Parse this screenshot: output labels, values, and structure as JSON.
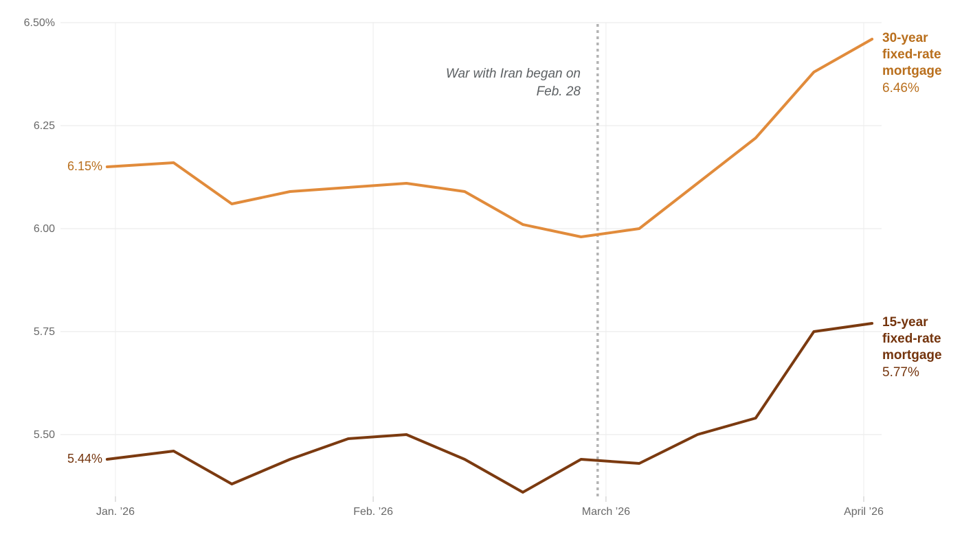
{
  "chart_data": {
    "type": "line",
    "title": "",
    "x_unit": "days since Jan. 1 '26 (weekly mortgage-rate readings)",
    "x_days": [
      -1,
      7,
      14,
      21,
      28,
      35,
      42,
      49,
      56,
      63,
      70,
      77,
      84,
      91
    ],
    "series": [
      {
        "name": "30-year fixed-rate mortgage",
        "values": [
          6.15,
          6.16,
          6.06,
          6.09,
          6.1,
          6.11,
          6.09,
          6.01,
          5.98,
          6.0,
          6.11,
          6.22,
          6.38,
          6.46
        ],
        "start_label": "6.15%",
        "end_label_lines": [
          "30-year",
          "fixed-rate",
          "mortgage"
        ],
        "end_value_label": "6.46%",
        "line_color": "#E18B3B",
        "text_color": "#B96F1D"
      },
      {
        "name": "15-year fixed-rate mortgage",
        "values": [
          5.44,
          5.46,
          5.38,
          5.44,
          5.49,
          5.5,
          5.44,
          5.36,
          5.44,
          5.43,
          5.5,
          5.54,
          5.75,
          5.77
        ],
        "start_label": "5.44%",
        "end_label_lines": [
          "15-year",
          "fixed-rate",
          "mortgage"
        ],
        "end_value_label": "5.77%",
        "line_color": "#7B3A10",
        "text_color": "#74340D"
      }
    ],
    "y_axis": {
      "range": [
        5.5,
        6.5
      ],
      "grid": true,
      "ticks": [
        {
          "label": "6.50%",
          "value": 6.5
        },
        {
          "label": "6.25",
          "value": 6.25
        },
        {
          "label": "6.00",
          "value": 6.0
        },
        {
          "label": "5.75",
          "value": 5.75
        },
        {
          "label": "5.50",
          "value": 5.5
        }
      ]
    },
    "x_axis": {
      "grid": true,
      "ticks": [
        {
          "label": "Jan. ’26",
          "day": 0
        },
        {
          "label": "Feb. ’26",
          "day": 31
        },
        {
          "label": "March ’26",
          "day": 59
        },
        {
          "label": "April ’26",
          "day": 90
        }
      ]
    },
    "annotation": {
      "lines": [
        "War with Iran began on",
        "Feb. 28"
      ],
      "day": 58,
      "line_style": "dashed",
      "line_color": "#B3B3B3",
      "text_color": "#5C6063"
    },
    "legend_position": "right-end-labels",
    "colors": {
      "background": "#FFFFFF",
      "axis_text": "#686868",
      "grid_h": "#E7E7E7",
      "grid_v": "#ECECEC",
      "tick": "#C6C6C6"
    }
  }
}
